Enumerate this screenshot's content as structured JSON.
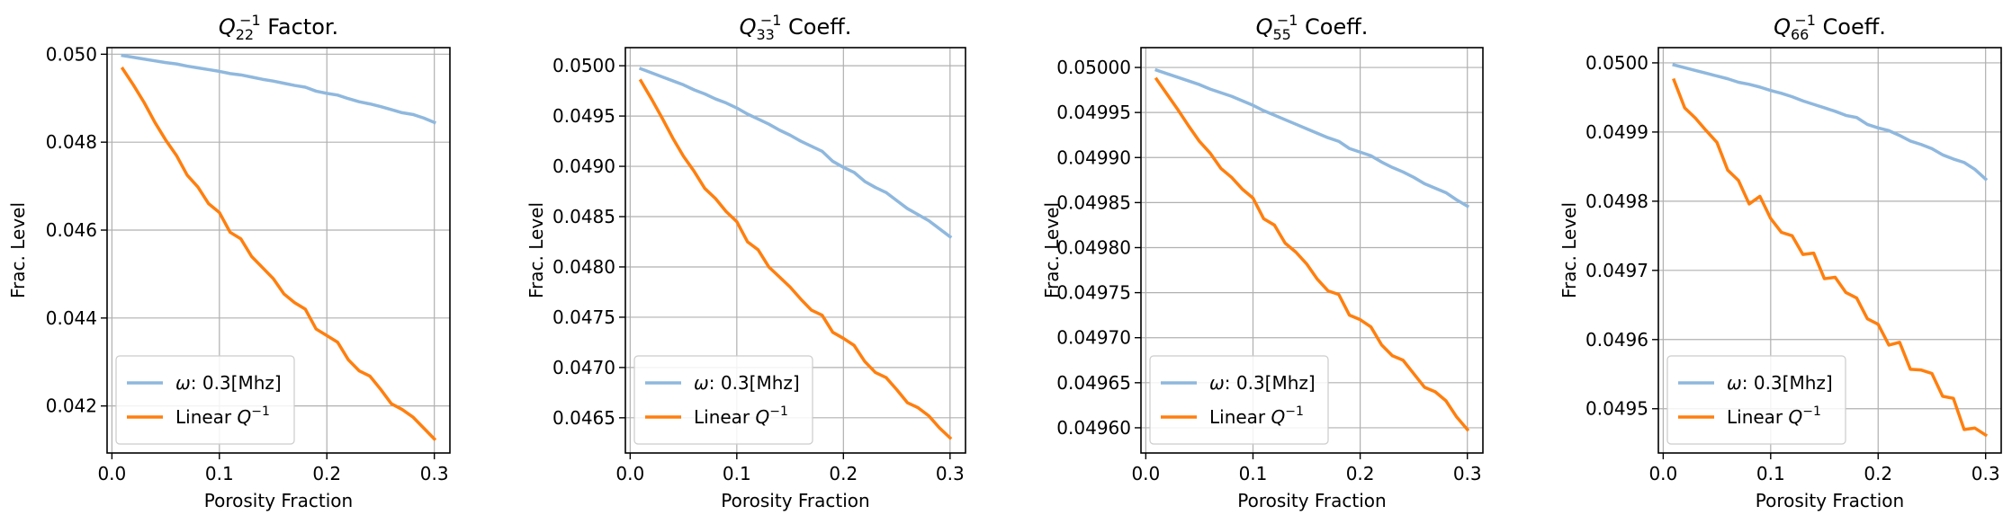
{
  "colors": {
    "omega": "#8fb8de",
    "linear": "#ff7f0e",
    "grid": "#b0b0b0"
  },
  "chart_data": [
    {
      "type": "line",
      "title": {
        "sym": "Q",
        "sub": "22",
        "sup": "−1",
        "suffix": " Factor."
      },
      "xlabel": "Porosity Fraction",
      "ylabel": "Frac. Level",
      "xlim": [
        -0.0045,
        0.3145
      ],
      "ylim": [
        0.04093,
        0.05015
      ],
      "xticks": [
        0.0,
        0.1,
        0.2,
        0.3
      ],
      "xtick_labels": [
        "0.0",
        "0.1",
        "0.2",
        "0.3"
      ],
      "yticks": [
        0.042,
        0.044,
        0.046,
        0.048,
        0.05
      ],
      "ytick_labels": [
        "0.042",
        "0.044",
        "0.046",
        "0.048",
        "0.050"
      ],
      "grid": true,
      "legend_position": "lower-left",
      "x": [
        0.01,
        0.02,
        0.03,
        0.04,
        0.05,
        0.06,
        0.07,
        0.08,
        0.09,
        0.1,
        0.11,
        0.12,
        0.13,
        0.14,
        0.15,
        0.16,
        0.17,
        0.18,
        0.19,
        0.2,
        0.21,
        0.22,
        0.23,
        0.24,
        0.25,
        0.26,
        0.27,
        0.28,
        0.29,
        0.3
      ],
      "series": [
        {
          "label_prefix": "ω",
          "label_rest": ": 0.3[Mhz]",
          "color_key": "omega",
          "values": [
            0.04997,
            0.04993,
            0.04989,
            0.04985,
            0.04981,
            0.04978,
            0.04973,
            0.04969,
            0.04965,
            0.04961,
            0.04956,
            0.04953,
            0.04948,
            0.04943,
            0.04939,
            0.04934,
            0.04929,
            0.04925,
            0.04916,
            0.04911,
            0.04907,
            0.04899,
            0.04892,
            0.04887,
            0.04881,
            0.04874,
            0.04867,
            0.04863,
            0.04855,
            0.04845
          ]
        },
        {
          "label_prefix": "Linear ",
          "label_sym": "Q",
          "label_sup": "−1",
          "color_key": "linear",
          "values": [
            0.04967,
            0.0493,
            0.0489,
            0.04845,
            0.04805,
            0.0477,
            0.04725,
            0.04698,
            0.0466,
            0.0464,
            0.04595,
            0.0458,
            0.0454,
            0.04515,
            0.0449,
            0.04455,
            0.04435,
            0.0442,
            0.04375,
            0.0436,
            0.04345,
            0.04305,
            0.0428,
            0.04268,
            0.04238,
            0.04205,
            0.04192,
            0.04175,
            0.0415,
            0.04125
          ]
        }
      ]
    },
    {
      "type": "line",
      "title": {
        "sym": "Q",
        "sub": "33",
        "sup": "−1",
        "suffix": " Coeff."
      },
      "xlabel": "Porosity Fraction",
      "ylabel": "Frac. Level",
      "xlim": [
        -0.0045,
        0.3145
      ],
      "ylim": [
        0.04615,
        0.05018
      ],
      "xticks": [
        0.0,
        0.1,
        0.2,
        0.3
      ],
      "xtick_labels": [
        "0.0",
        "0.1",
        "0.2",
        "0.3"
      ],
      "yticks": [
        0.0465,
        0.047,
        0.0475,
        0.048,
        0.0485,
        0.049,
        0.0495,
        0.05
      ],
      "ytick_labels": [
        "0.0465",
        "0.0470",
        "0.0475",
        "0.0480",
        "0.0485",
        "0.0490",
        "0.0495",
        "0.0500"
      ],
      "grid": true,
      "legend_position": "lower-left",
      "x": [
        0.01,
        0.02,
        0.03,
        0.04,
        0.05,
        0.06,
        0.07,
        0.08,
        0.09,
        0.1,
        0.11,
        0.12,
        0.13,
        0.14,
        0.15,
        0.16,
        0.17,
        0.18,
        0.19,
        0.2,
        0.21,
        0.22,
        0.23,
        0.24,
        0.25,
        0.26,
        0.27,
        0.28,
        0.29,
        0.3
      ],
      "series": [
        {
          "label_prefix": "ω",
          "label_rest": ": 0.3[Mhz]",
          "color_key": "omega",
          "values": [
            0.04997,
            0.04993,
            0.04989,
            0.04985,
            0.04981,
            0.04976,
            0.04972,
            0.04967,
            0.04963,
            0.04958,
            0.04952,
            0.04947,
            0.04942,
            0.04936,
            0.04931,
            0.04925,
            0.0492,
            0.04915,
            0.04905,
            0.04899,
            0.04894,
            0.04885,
            0.04879,
            0.04874,
            0.04866,
            0.04858,
            0.04852,
            0.04846,
            0.04838,
            0.0483
          ]
        },
        {
          "label_prefix": "Linear ",
          "label_sym": "Q",
          "label_sup": "−1",
          "color_key": "linear",
          "values": [
            0.04985,
            0.04967,
            0.04948,
            0.04928,
            0.0491,
            0.04895,
            0.04878,
            0.04868,
            0.04855,
            0.04845,
            0.04825,
            0.04817,
            0.048,
            0.0479,
            0.0478,
            0.04768,
            0.04757,
            0.04752,
            0.04735,
            0.04729,
            0.04722,
            0.04706,
            0.04695,
            0.0469,
            0.04678,
            0.04665,
            0.0466,
            0.04652,
            0.0464,
            0.0463
          ]
        }
      ]
    },
    {
      "type": "line",
      "title": {
        "sym": "Q",
        "sub": "55",
        "sup": "−1",
        "suffix": " Coeff."
      },
      "xlabel": "Porosity Fraction",
      "ylabel": "Frac. Level",
      "xlim": [
        -0.0045,
        0.3145
      ],
      "ylim": [
        0.049572,
        0.050022
      ],
      "xticks": [
        0.0,
        0.1,
        0.2,
        0.3
      ],
      "xtick_labels": [
        "0.0",
        "0.1",
        "0.2",
        "0.3"
      ],
      "yticks": [
        0.0496,
        0.04965,
        0.0497,
        0.04975,
        0.0498,
        0.04985,
        0.0499,
        0.04995,
        0.05
      ],
      "ytick_labels": [
        "0.04960",
        "0.04965",
        "0.04970",
        "0.04975",
        "0.04980",
        "0.04985",
        "0.04990",
        "0.04995",
        "0.05000"
      ],
      "grid": true,
      "legend_position": "lower-left",
      "x": [
        0.01,
        0.02,
        0.03,
        0.04,
        0.05,
        0.06,
        0.07,
        0.08,
        0.09,
        0.1,
        0.11,
        0.12,
        0.13,
        0.14,
        0.15,
        0.16,
        0.17,
        0.18,
        0.19,
        0.2,
        0.21,
        0.22,
        0.23,
        0.24,
        0.25,
        0.26,
        0.27,
        0.28,
        0.29,
        0.3
      ],
      "series": [
        {
          "label_prefix": "ω",
          "label_rest": ": 0.3[Mhz]",
          "color_key": "omega",
          "values": [
            0.049997,
            0.049993,
            0.049989,
            0.049985,
            0.049981,
            0.049976,
            0.049972,
            0.049968,
            0.049963,
            0.049958,
            0.049952,
            0.049947,
            0.049942,
            0.049937,
            0.049932,
            0.049927,
            0.049922,
            0.049918,
            0.04991,
            0.049906,
            0.049902,
            0.049895,
            0.049889,
            0.049884,
            0.049878,
            0.049871,
            0.049866,
            0.049861,
            0.049853,
            0.049846
          ]
        },
        {
          "label_prefix": "Linear ",
          "label_sym": "Q",
          "label_sup": "−1",
          "color_key": "linear",
          "values": [
            0.049987,
            0.04997,
            0.049953,
            0.049935,
            0.049918,
            0.049905,
            0.049888,
            0.049878,
            0.049865,
            0.049855,
            0.049832,
            0.049825,
            0.049805,
            0.049795,
            0.049782,
            0.049765,
            0.049752,
            0.049748,
            0.049725,
            0.04972,
            0.049712,
            0.049692,
            0.04968,
            0.049675,
            0.04966,
            0.049645,
            0.04964,
            0.04963,
            0.049612,
            0.049598
          ]
        }
      ]
    },
    {
      "type": "line",
      "title": {
        "sym": "Q",
        "sub": "66",
        "sup": "−1",
        "suffix": " Coeff."
      },
      "xlabel": "Porosity Fraction",
      "ylabel": "Frac. Level",
      "xlim": [
        -0.0045,
        0.3145
      ],
      "ylim": [
        0.049436,
        0.050022
      ],
      "xticks": [
        0.0,
        0.1,
        0.2,
        0.3
      ],
      "xtick_labels": [
        "0.0",
        "0.1",
        "0.2",
        "0.3"
      ],
      "yticks": [
        0.0495,
        0.0496,
        0.0497,
        0.0498,
        0.0499,
        0.05
      ],
      "ytick_labels": [
        "0.0495",
        "0.0496",
        "0.0497",
        "0.0498",
        "0.0499",
        "0.0500"
      ],
      "grid": true,
      "legend_position": "lower-left",
      "x": [
        0.01,
        0.02,
        0.03,
        0.04,
        0.05,
        0.06,
        0.07,
        0.08,
        0.09,
        0.1,
        0.11,
        0.12,
        0.13,
        0.14,
        0.15,
        0.16,
        0.17,
        0.18,
        0.19,
        0.2,
        0.21,
        0.22,
        0.23,
        0.24,
        0.25,
        0.26,
        0.27,
        0.28,
        0.29,
        0.3
      ],
      "series": [
        {
          "label_prefix": "ω",
          "label_rest": ": 0.3[Mhz]",
          "color_key": "omega",
          "values": [
            0.049997,
            0.049993,
            0.049989,
            0.049985,
            0.049981,
            0.049977,
            0.049972,
            0.049969,
            0.049965,
            0.04996,
            0.049956,
            0.049951,
            0.049945,
            0.04994,
            0.049935,
            0.04993,
            0.049924,
            0.049921,
            0.049911,
            0.049906,
            0.049902,
            0.049895,
            0.049887,
            0.049882,
            0.049876,
            0.049867,
            0.049861,
            0.049856,
            0.049846,
            0.049832
          ]
        },
        {
          "label_prefix": "Linear ",
          "label_sym": "Q",
          "label_sup": "−1",
          "color_key": "linear",
          "values": [
            0.049975,
            0.049935,
            0.04992,
            0.049902,
            0.049885,
            0.049845,
            0.04983,
            0.049796,
            0.049807,
            0.049775,
            0.049755,
            0.04975,
            0.049723,
            0.049725,
            0.049688,
            0.04969,
            0.049668,
            0.04966,
            0.04963,
            0.049622,
            0.049592,
            0.049596,
            0.049557,
            0.049556,
            0.049551,
            0.049518,
            0.049515,
            0.04947,
            0.049472,
            0.049462
          ]
        }
      ]
    }
  ]
}
